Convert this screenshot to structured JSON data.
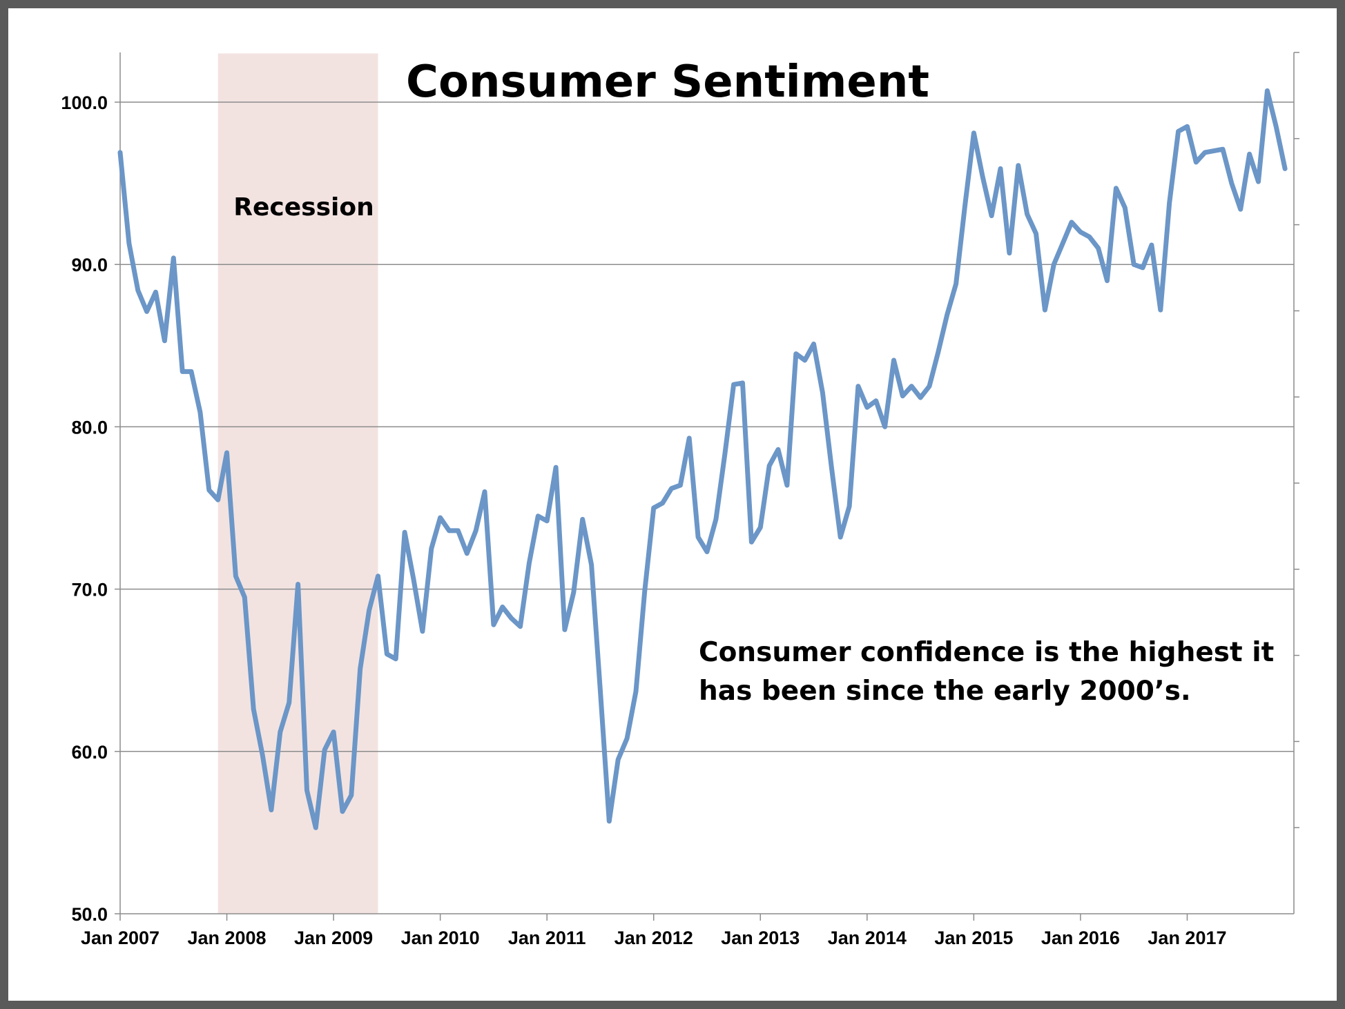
{
  "chart_data": {
    "type": "line",
    "title": "Consumer Sentiment",
    "xlabel": "",
    "ylabel": "",
    "ylim": [
      50,
      103
    ],
    "yticks": [
      "50.0",
      "60.0",
      "70.0",
      "80.0",
      "90.0",
      "100.0"
    ],
    "xticks": [
      "Jan 2007",
      "Jan 2008",
      "Jan 2009",
      "Jan 2010",
      "Jan 2011",
      "Jan 2012",
      "Jan 2013",
      "Jan 2014",
      "Jan 2015",
      "Jan 2016",
      "Jan 2017"
    ],
    "x_start": "Jan 2007",
    "x_end": "Dec 2017",
    "grid": "horizontal",
    "recession": {
      "label": "Recession",
      "start": "Dec 2007",
      "end": "Jun 2009",
      "color": "#f2e3e1"
    },
    "annotation": [
      "Consumer confidence is the highest it",
      "has been since the early 2000’s."
    ],
    "line_color": "#6b96c7",
    "series": [
      {
        "values": [
          96.9,
          91.3,
          88.4,
          87.1,
          88.3,
          85.3,
          90.4,
          83.4,
          83.4,
          80.9,
          76.1,
          75.5,
          78.4,
          70.8,
          69.5,
          62.6,
          59.8,
          56.4,
          61.2,
          63.0,
          70.3,
          57.6,
          55.3,
          60.1,
          61.2,
          56.3,
          57.3,
          65.1,
          68.7,
          70.8,
          66.0,
          65.7,
          73.5,
          70.6,
          67.4,
          72.5,
          74.4,
          73.6,
          73.6,
          72.2,
          73.6,
          76.0,
          67.8,
          68.9,
          68.2,
          67.7,
          71.6,
          74.5,
          74.2,
          77.5,
          67.5,
          69.8,
          74.3,
          71.5,
          63.7,
          55.7,
          59.5,
          60.8,
          63.7,
          69.9,
          75.0,
          75.3,
          76.2,
          76.4,
          79.3,
          73.2,
          72.3,
          74.3,
          78.3,
          82.6,
          82.7,
          72.9,
          73.8,
          77.6,
          78.6,
          76.4,
          84.5,
          84.1,
          85.1,
          82.1,
          77.5,
          73.2,
          75.1,
          82.5,
          81.2,
          81.6,
          80.0,
          84.1,
          81.9,
          82.5,
          81.8,
          82.5,
          84.6,
          86.9,
          88.8,
          93.6,
          98.1,
          95.4,
          93.0,
          95.9,
          90.7,
          96.1,
          93.1,
          91.9,
          87.2,
          90.0,
          91.3,
          92.6,
          92.0,
          91.7,
          91.0,
          89.0,
          94.7,
          93.5,
          90.0,
          89.8,
          91.2,
          87.2,
          93.8,
          98.2,
          98.5,
          96.3,
          96.9,
          97.0,
          97.1,
          95.0,
          93.4,
          96.8,
          95.1,
          100.7,
          98.5,
          95.9
        ]
      }
    ]
  }
}
